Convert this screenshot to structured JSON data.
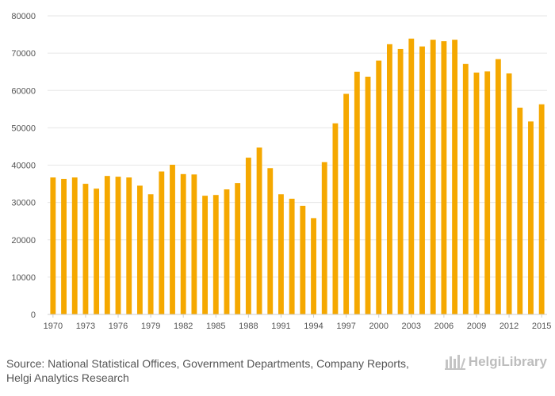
{
  "chart_data": {
    "type": "bar",
    "title": "",
    "xlabel": "",
    "ylabel": "",
    "ylim": [
      0,
      80000
    ],
    "yticks": [
      0,
      10000,
      20000,
      30000,
      40000,
      50000,
      60000,
      70000,
      80000
    ],
    "grid": true,
    "bar_color": "#f5a800",
    "categories": [
      "1970",
      "1971",
      "1972",
      "1973",
      "1974",
      "1975",
      "1976",
      "1977",
      "1978",
      "1979",
      "1980",
      "1981",
      "1982",
      "1983",
      "1984",
      "1985",
      "1986",
      "1987",
      "1988",
      "1989",
      "1990",
      "1991",
      "1992",
      "1993",
      "1994",
      "1995",
      "1996",
      "1997",
      "1998",
      "1999",
      "2000",
      "2001",
      "2002",
      "2003",
      "2004",
      "2005",
      "2006",
      "2007",
      "2008",
      "2009",
      "2010",
      "2011",
      "2012",
      "2013",
      "2014",
      "2015"
    ],
    "values": [
      36700,
      36300,
      36700,
      35000,
      33700,
      37100,
      36900,
      36700,
      34500,
      32200,
      38300,
      40100,
      37600,
      37500,
      31800,
      32000,
      33500,
      35200,
      42000,
      44700,
      39200,
      32200,
      31000,
      29100,
      25800,
      40800,
      51200,
      59100,
      65000,
      63700,
      68000,
      72400,
      71100,
      73900,
      71800,
      73600,
      73200,
      73600,
      67100,
      64800,
      65100,
      68400,
      64600,
      55400,
      51700,
      56300
    ],
    "xtick_labels": [
      "1970",
      "1973",
      "1976",
      "1979",
      "1982",
      "1985",
      "1988",
      "1991",
      "1994",
      "1997",
      "2000",
      "2003",
      "2006",
      "2009",
      "2012",
      "2015"
    ]
  },
  "footer": {
    "source_line1": "Source: National Statistical Offices, Government Departments, Company Reports,",
    "source_line2": "Helgi Analytics Research",
    "logo_text": "HelgiLibrary"
  }
}
